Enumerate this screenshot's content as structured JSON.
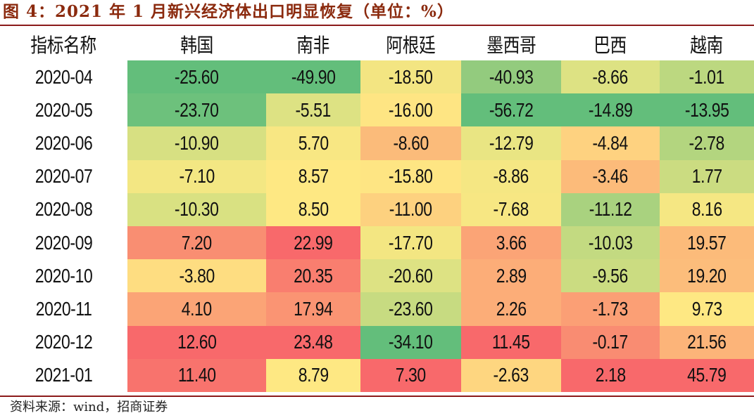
{
  "title": "图 4：2021 年 1 月新兴经济体出口明显恢复（单位：%）",
  "source": "资料来源：wind，招商证券",
  "header": {
    "label": "指标名称",
    "columns": [
      "韩国",
      "南非",
      "阿根廷",
      "墨西哥",
      "巴西",
      "越南"
    ]
  },
  "rows": [
    {
      "date": "2020-04",
      "values": [
        "-25.60",
        "-49.90",
        "-18.50",
        "-40.93",
        "-8.66",
        "-1.01"
      ],
      "colors": [
        "#63be7b",
        "#63be7b",
        "#f3e582",
        "#93cb7e",
        "#dde283",
        "#bcd880"
      ]
    },
    {
      "date": "2020-05",
      "values": [
        "-23.70",
        "-5.51",
        "-16.00",
        "-56.72",
        "-14.89",
        "-13.95"
      ],
      "colors": [
        "#6dc17c",
        "#dde283",
        "#fee583",
        "#63be7b",
        "#63be7b",
        "#63be7b"
      ]
    },
    {
      "date": "2020-06",
      "values": [
        "-10.90",
        "5.70",
        "-8.60",
        "-12.79",
        "-4.84",
        "-2.78"
      ],
      "colors": [
        "#d7e082",
        "#f8e783",
        "#fbbb7a",
        "#e9e583",
        "#fed280",
        "#b3d57f"
      ]
    },
    {
      "date": "2020-07",
      "values": [
        "-7.10",
        "8.57",
        "-15.80",
        "-8.86",
        "-3.46",
        "1.77"
      ],
      "colors": [
        "#f3e783",
        "#fee883",
        "#fee583",
        "#f5e783",
        "#fcbb7a",
        "#cbdc81"
      ]
    },
    {
      "date": "2020-08",
      "values": [
        "-10.30",
        "8.50",
        "-11.00",
        "-7.68",
        "-11.12",
        "8.16"
      ],
      "colors": [
        "#d9e182",
        "#fee883",
        "#fdd17f",
        "#f7e783",
        "#a9d27f",
        "#f5e783"
      ]
    },
    {
      "date": "2020-09",
      "values": [
        "7.20",
        "22.99",
        "-17.70",
        "3.66",
        "-10.03",
        "19.57"
      ],
      "colors": [
        "#f98e72",
        "#f8696b",
        "#f3e682",
        "#fba476",
        "#c3da81",
        "#fcbb7a"
      ]
    },
    {
      "date": "2020-10",
      "values": [
        "-3.80",
        "20.35",
        "-20.60",
        "2.89",
        "-9.56",
        "19.20"
      ],
      "colors": [
        "#fedd81",
        "#f97e6f",
        "#dde283",
        "#fcad78",
        "#cbdc81",
        "#fcbd7b"
      ]
    },
    {
      "date": "2020-11",
      "values": [
        "4.10",
        "17.94",
        "-23.60",
        "2.26",
        "-1.73",
        "9.73"
      ],
      "colors": [
        "#fba476",
        "#fa9473",
        "#c7db81",
        "#fcad78",
        "#fb9f75",
        "#fee883"
      ]
    },
    {
      "date": "2020-12",
      "values": [
        "12.60",
        "23.48",
        "-34.10",
        "11.45",
        "-0.17",
        "21.56"
      ],
      "colors": [
        "#f8696b",
        "#f8696b",
        "#63be7b",
        "#f8696b",
        "#f98c72",
        "#fcb479"
      ]
    },
    {
      "date": "2021-01",
      "values": [
        "11.40",
        "8.79",
        "7.30",
        "-2.63",
        "2.18",
        "45.79"
      ],
      "colors": [
        "#f8736d",
        "#fee883",
        "#f8696b",
        "#fed680",
        "#f8696b",
        "#f8696b"
      ]
    }
  ],
  "chart_data": {
    "type": "heatmap",
    "title": "图 4：2021 年 1 月新兴经济体出口明显恢复（单位：%）",
    "row_header": "指标名称",
    "columns": [
      "韩国",
      "南非",
      "阿根廷",
      "墨西哥",
      "巴西",
      "越南"
    ],
    "rows": [
      "2020-04",
      "2020-05",
      "2020-06",
      "2020-07",
      "2020-08",
      "2020-09",
      "2020-10",
      "2020-11",
      "2020-12",
      "2021-01"
    ],
    "values": [
      [
        -25.6,
        -49.9,
        -18.5,
        -40.93,
        -8.66,
        -1.01
      ],
      [
        -23.7,
        -5.51,
        -16.0,
        -56.72,
        -14.89,
        -13.95
      ],
      [
        -10.9,
        5.7,
        -8.6,
        -12.79,
        -4.84,
        -2.78
      ],
      [
        -7.1,
        8.57,
        -15.8,
        -8.86,
        -3.46,
        1.77
      ],
      [
        -10.3,
        8.5,
        -11.0,
        -7.68,
        -11.12,
        8.16
      ],
      [
        7.2,
        22.99,
        -17.7,
        3.66,
        -10.03,
        19.57
      ],
      [
        -3.8,
        20.35,
        -20.6,
        2.89,
        -9.56,
        19.2
      ],
      [
        4.1,
        17.94,
        -23.6,
        2.26,
        -1.73,
        9.73
      ],
      [
        12.6,
        23.48,
        -34.1,
        11.45,
        -0.17,
        21.56
      ],
      [
        11.4,
        8.79,
        7.3,
        -2.63,
        2.18,
        45.79
      ]
    ],
    "color_scale": "green (low) - yellow (mid) - red (high), per column",
    "unit": "%",
    "source": "资料来源：wind，招商证券"
  }
}
